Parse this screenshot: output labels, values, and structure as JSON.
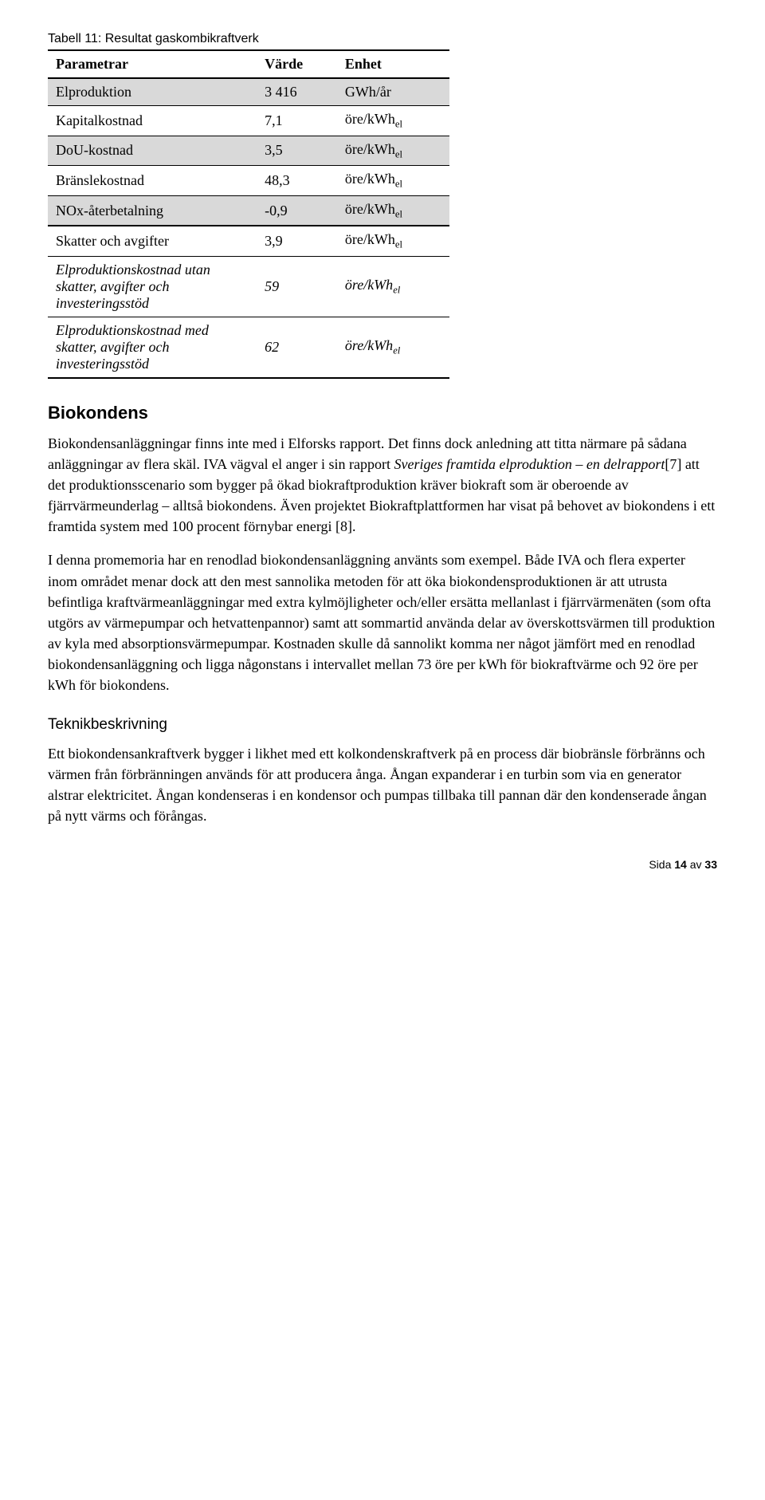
{
  "table": {
    "caption": "Tabell 11: Resultat gaskombikraftverk",
    "headers": [
      "Parametrar",
      "Värde",
      "Enhet"
    ],
    "col_widths": [
      "52%",
      "20%",
      "28%"
    ],
    "rows": [
      {
        "shade": true,
        "italic": false,
        "param": "Elproduktion",
        "value": "3 416",
        "unit_prefix": "GWh/år",
        "unit_sub": ""
      },
      {
        "shade": false,
        "italic": false,
        "param": "Kapitalkostnad",
        "value": "7,1",
        "unit_prefix": "öre/kWh",
        "unit_sub": "el"
      },
      {
        "shade": true,
        "italic": false,
        "param": "DoU-kostnad",
        "value": "3,5",
        "unit_prefix": "öre/kWh",
        "unit_sub": "el"
      },
      {
        "shade": false,
        "italic": false,
        "param": "Bränslekostnad",
        "value": "48,3",
        "unit_prefix": "öre/kWh",
        "unit_sub": "el"
      },
      {
        "shade": true,
        "italic": false,
        "param": "NOx-återbetalning",
        "value": "-0,9",
        "unit_prefix": "öre/kWh",
        "unit_sub": "el"
      },
      {
        "shade": false,
        "italic": false,
        "param": "Skatter och avgifter",
        "value": "3,9",
        "unit_prefix": "öre/kWh",
        "unit_sub": "el"
      },
      {
        "shade": false,
        "italic": true,
        "param": "Elproduktionskostnad utan skatter, avgifter och investeringsstöd",
        "value": "59",
        "unit_prefix": "öre/kWh",
        "unit_sub": "el"
      },
      {
        "shade": false,
        "italic": true,
        "param": "Elproduktionskostnad med skatter, avgifter och investeringsstöd",
        "value": "62",
        "unit_prefix": "öre/kWh",
        "unit_sub": "el"
      }
    ]
  },
  "section_heading": "Biokondens",
  "para1_a": "Biokondensanläggningar finns inte med i Elforsks rapport. Det finns dock anledning att titta närmare på sådana anläggningar av flera skäl. IVA vägval el anger i sin rapport ",
  "para1_i": "Sveriges framtida elproduktion – en delrapport",
  "para1_b": "[7] att det produktionsscenario som bygger på ökad biokraftproduktion kräver biokraft som är oberoende av fjärrvärmeunderlag – alltså biokondens. Även projektet Biokraftplattformen har visat på behovet av biokondens i ett framtida system med 100 procent förnybar energi [8].",
  "para2": "I denna promemoria har en renodlad biokondensanläggning använts som exempel. Både IVA och flera experter inom området menar dock att den mest sannolika metoden för att öka biokondensproduktionen är att utrusta befintliga kraftvärmeanläggningar med extra kylmöjligheter och/eller ersätta mellanlast i fjärrvärmenäten (som ofta utgörs av värmepumpar och hetvattenpannor) samt att sommartid använda delar av överskottsvärmen till produktion av kyla med absorptionsvärmepumpar. Kostnaden skulle då sannolikt komma ner något jämfört med en renodlad biokondensanläggning och ligga någonstans i intervallet mellan 73 öre per kWh för biokraftvärme och 92 öre per kWh för biokondens.",
  "subsection_heading": "Teknikbeskrivning",
  "para3": "Ett biokondensankraftverk bygger i likhet med ett kolkondenskraftverk på en process där biobränsle förbränns och värmen från förbränningen används för att producera ånga. Ångan expanderar i en turbin som via en generator alstrar elektricitet. Ångan kondenseras i en kondensor och pumpas tillbaka till pannan där den kondenserade ångan på nytt värms och förångas.",
  "footer_a": "Sida ",
  "footer_b": "14",
  "footer_c": " av ",
  "footer_d": "33"
}
